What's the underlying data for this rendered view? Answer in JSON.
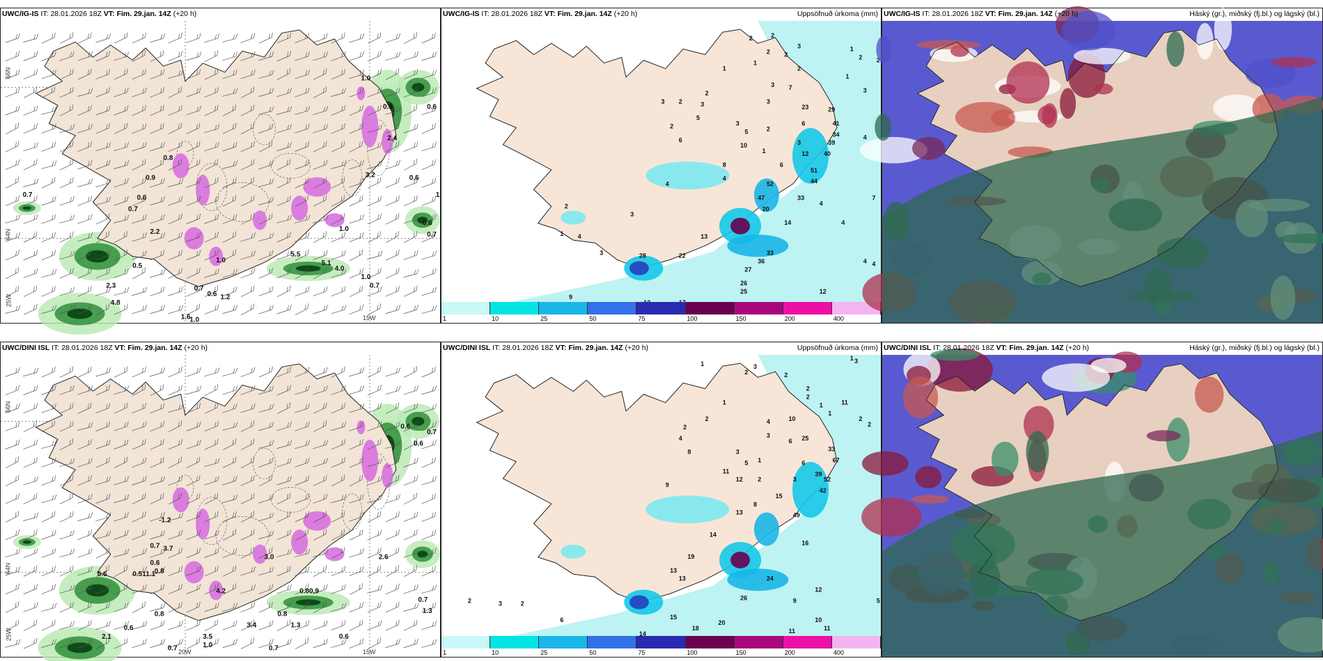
{
  "panels": [
    {
      "id": "p1",
      "model": "UWC/IG-IS",
      "it_label": "IT:",
      "it_value": "28.01.2026 18Z",
      "vt_label": "VT:",
      "vt_value": "Fim. 29.jan. 14Z",
      "lead": "(+20 h)",
      "right_label": ""
    },
    {
      "id": "p2",
      "model": "UWC/IG-IS",
      "it_label": "IT:",
      "it_value": "28.01.2026 18Z",
      "vt_label": "VT:",
      "vt_value": "Fim. 29.jan. 14Z",
      "lead": "(+20 h)",
      "right_label": "Uppsöfnuð úrkoma (mm)"
    },
    {
      "id": "p3",
      "model": "UWC/IG-IS",
      "it_label": "IT:",
      "it_value": "28.01.2026 18Z",
      "vt_label": "VT:",
      "vt_value": "Fim. 29.jan. 14Z",
      "lead": "(+20 h)",
      "right_label": "Háský (gr.), miðský (fj.bl.) og lágský (bl.)"
    },
    {
      "id": "p4",
      "model": "UWC/DINI ISL",
      "it_label": "IT:",
      "it_value": "28.01.2026 18Z",
      "vt_label": "VT:",
      "vt_value": "Fim. 29.jan. 14Z",
      "lead": "(+20 h)",
      "right_label": ""
    },
    {
      "id": "p5",
      "model": "UWC/DINI ISL",
      "it_label": "IT:",
      "it_value": "28.01.2026 18Z",
      "vt_label": "VT:",
      "vt_value": "Fim. 29.jan. 14Z",
      "lead": "(+20 h)",
      "right_label": "Uppsöfnuð úrkoma (mm)"
    },
    {
      "id": "p6",
      "model": "UWC/DINI ISL",
      "it_label": "IT:",
      "it_value": "28.01.2026 18Z",
      "vt_label": "VT:",
      "vt_value": "Fim. 29.jan. 14Z",
      "lead": "(+20 h)",
      "right_label": "Háský (gr.), miðský (fj.bl.) og lágský (bl.)"
    }
  ],
  "coords": {
    "lat_top": "66N",
    "lat_bottom": "64N",
    "lon_left": "25W",
    "lon_mid": "20W",
    "lon_right": "15W"
  },
  "colorbar": {
    "ticks": [
      "1",
      "10",
      "25",
      "50",
      "75",
      "100",
      "150",
      "200",
      "400"
    ],
    "colors": [
      "#c8f8f8",
      "#00e4e4",
      "#1ab6e8",
      "#3470e8",
      "#2a2ab0",
      "#6a0050",
      "#a8087c",
      "#ec10a8",
      "#f4b4f0"
    ]
  },
  "precip_labels_top": [
    {
      "t": "1.0",
      "u": 0.82,
      "v": 0.21
    },
    {
      "t": "0.9",
      "u": 0.87,
      "v": 0.31
    },
    {
      "t": "0.6",
      "u": 0.97,
      "v": 0.31
    },
    {
      "t": "2.4",
      "u": 0.88,
      "v": 0.42
    },
    {
      "t": "0.7",
      "u": 0.05,
      "v": 0.62
    },
    {
      "t": "0.8",
      "u": 0.37,
      "v": 0.49
    },
    {
      "t": "0.9",
      "u": 0.33,
      "v": 0.56
    },
    {
      "t": "0.6",
      "u": 0.31,
      "v": 0.63
    },
    {
      "t": "0.7",
      "u": 0.29,
      "v": 0.67
    },
    {
      "t": "2.2",
      "u": 0.34,
      "v": 0.75
    },
    {
      "t": "0.5",
      "u": 0.3,
      "v": 0.87
    },
    {
      "t": "2.3",
      "u": 0.24,
      "v": 0.94
    },
    {
      "t": "4.8",
      "u": 0.25,
      "v": 1.0
    },
    {
      "t": "1.6",
      "u": 0.41,
      "v": 1.05
    },
    {
      "t": "1.0",
      "u": 0.43,
      "v": 1.1
    },
    {
      "t": "0.7",
      "u": 0.44,
      "v": 0.95
    },
    {
      "t": "1.0",
      "u": 0.49,
      "v": 0.85
    },
    {
      "t": "0.6",
      "u": 0.47,
      "v": 0.97
    },
    {
      "t": "1.2",
      "u": 0.5,
      "v": 0.98
    },
    {
      "t": "5.1",
      "u": 0.73,
      "v": 0.86
    },
    {
      "t": "4.0",
      "u": 0.76,
      "v": 0.88
    },
    {
      "t": "1.0",
      "u": 0.82,
      "v": 0.91
    },
    {
      "t": "0.7",
      "u": 0.84,
      "v": 0.94
    },
    {
      "t": "1.0",
      "u": 0.99,
      "v": 0.62
    },
    {
      "t": "0.6",
      "u": 0.96,
      "v": 0.72
    },
    {
      "t": "0.7",
      "u": 0.97,
      "v": 0.76
    },
    {
      "t": "0.6",
      "u": 0.93,
      "v": 0.56
    },
    {
      "t": "5.5",
      "u": 0.66,
      "v": 0.83
    },
    {
      "t": "1.0",
      "u": 0.77,
      "v": 0.74
    },
    {
      "t": "3.2",
      "u": 0.83,
      "v": 0.55
    }
  ],
  "precip_labels_bottom": [
    {
      "t": "0.6",
      "u": 0.91,
      "v": 0.26
    },
    {
      "t": "0.7",
      "u": 0.97,
      "v": 0.28
    },
    {
      "t": "0.6",
      "u": 0.94,
      "v": 0.32
    },
    {
      "t": "-1.2",
      "u": 0.36,
      "v": 0.59
    },
    {
      "t": "0.7",
      "u": 0.34,
      "v": 0.68
    },
    {
      "t": "3.7",
      "u": 0.37,
      "v": 0.69
    },
    {
      "t": "0.6",
      "u": 0.34,
      "v": 0.74
    },
    {
      "t": "0.6",
      "u": 0.22,
      "v": 0.78
    },
    {
      "t": "0.51",
      "u": 0.3,
      "v": 0.78
    },
    {
      "t": "1.1",
      "u": 0.33,
      "v": 0.78
    },
    {
      "t": "0.8",
      "u": 0.35,
      "v": 0.77
    },
    {
      "t": "0.8",
      "u": 0.35,
      "v": 0.92
    },
    {
      "t": "0.6",
      "u": 0.28,
      "v": 0.97
    },
    {
      "t": "2.1",
      "u": 0.23,
      "v": 1.0
    },
    {
      "t": "0.7",
      "u": 0.38,
      "v": 1.04
    },
    {
      "t": "3.5",
      "u": 0.46,
      "v": 1.0
    },
    {
      "t": "1.0",
      "u": 0.46,
      "v": 1.03
    },
    {
      "t": "3.4",
      "u": 0.56,
      "v": 0.96
    },
    {
      "t": "0.8",
      "u": 0.63,
      "v": 0.92
    },
    {
      "t": "1.3",
      "u": 0.66,
      "v": 0.96
    },
    {
      "t": "0.6",
      "u": 0.77,
      "v": 1.0
    },
    {
      "t": "0.7",
      "u": 0.61,
      "v": 1.04
    },
    {
      "t": "0.7",
      "u": 0.95,
      "v": 0.87
    },
    {
      "t": "1.3",
      "u": 0.96,
      "v": 0.91
    },
    {
      "t": "0.80.9",
      "u": 0.68,
      "v": 0.84
    },
    {
      "t": "4.2",
      "u": 0.49,
      "v": 0.84
    },
    {
      "t": "3.0",
      "u": 0.6,
      "v": 0.72
    },
    {
      "t": "2.6",
      "u": 0.86,
      "v": 0.72
    }
  ],
  "accum_labels_top": [
    {
      "t": "1",
      "u": 0.06,
      "v": 1.02
    },
    {
      "t": "9",
      "u": 0.29,
      "v": 0.99
    },
    {
      "t": "12",
      "u": 0.46,
      "v": 1.01
    },
    {
      "t": "17",
      "u": 0.54,
      "v": 1.01
    },
    {
      "t": "22",
      "u": 0.54,
      "v": 0.84
    },
    {
      "t": "28",
      "u": 0.45,
      "v": 0.84
    },
    {
      "t": "2",
      "u": 0.28,
      "v": 0.66
    },
    {
      "t": "3",
      "u": 0.43,
      "v": 0.69
    },
    {
      "t": "1",
      "u": 0.27,
      "v": 0.76
    },
    {
      "t": "3",
      "u": 0.36,
      "v": 0.83
    },
    {
      "t": "4",
      "u": 0.31,
      "v": 0.77
    },
    {
      "t": "26",
      "u": 0.68,
      "v": 0.94
    },
    {
      "t": "25",
      "u": 0.68,
      "v": 0.97
    },
    {
      "t": "27",
      "u": 0.69,
      "v": 0.89
    },
    {
      "t": "36",
      "u": 0.72,
      "v": 0.86
    },
    {
      "t": "33",
      "u": 0.74,
      "v": 0.83
    },
    {
      "t": "14",
      "u": 0.78,
      "v": 0.72
    },
    {
      "t": "13",
      "u": 0.59,
      "v": 0.77
    },
    {
      "t": "4",
      "u": 0.51,
      "v": 0.58
    },
    {
      "t": "4",
      "u": 0.64,
      "v": 0.56
    },
    {
      "t": "8",
      "u": 0.64,
      "v": 0.51
    },
    {
      "t": "10",
      "u": 0.68,
      "v": 0.44
    },
    {
      "t": "3",
      "u": 0.67,
      "v": 0.36
    },
    {
      "t": "5",
      "u": 0.69,
      "v": 0.39
    },
    {
      "t": "5",
      "u": 0.58,
      "v": 0.34
    },
    {
      "t": "2",
      "u": 0.52,
      "v": 0.37
    },
    {
      "t": "2",
      "u": 0.6,
      "v": 0.25
    },
    {
      "t": "3",
      "u": 0.59,
      "v": 0.29
    },
    {
      "t": "2",
      "u": 0.54,
      "v": 0.28
    },
    {
      "t": "3",
      "u": 0.5,
      "v": 0.28
    },
    {
      "t": "1",
      "u": 0.64,
      "v": 0.16
    },
    {
      "t": "1",
      "u": 0.71,
      "v": 0.14
    },
    {
      "t": "2",
      "u": 0.74,
      "v": 0.1
    },
    {
      "t": "3",
      "u": 0.75,
      "v": 0.22
    },
    {
      "t": "3",
      "u": 0.74,
      "v": 0.28
    },
    {
      "t": "7",
      "u": 0.79,
      "v": 0.23
    },
    {
      "t": "23",
      "u": 0.82,
      "v": 0.3
    },
    {
      "t": "6",
      "u": 0.82,
      "v": 0.36
    },
    {
      "t": "12",
      "u": 0.82,
      "v": 0.47
    },
    {
      "t": "6",
      "u": 0.77,
      "v": 0.51
    },
    {
      "t": "3",
      "u": 0.81,
      "v": 0.43
    },
    {
      "t": "2",
      "u": 0.74,
      "v": 0.38
    },
    {
      "t": "1",
      "u": 0.73,
      "v": 0.46
    },
    {
      "t": "4",
      "u": 0.86,
      "v": 0.65
    },
    {
      "t": "4",
      "u": 0.91,
      "v": 0.72
    },
    {
      "t": "7",
      "u": 0.98,
      "v": 0.63
    },
    {
      "t": "4",
      "u": 0.96,
      "v": 0.86
    },
    {
      "t": "4",
      "u": 0.98,
      "v": 0.87
    },
    {
      "t": "12",
      "u": 0.86,
      "v": 0.97
    },
    {
      "t": "4",
      "u": 0.96,
      "v": 0.41
    },
    {
      "t": "33",
      "u": 0.81,
      "v": 0.63
    },
    {
      "t": "44",
      "u": 0.84,
      "v": 0.57
    },
    {
      "t": "51",
      "u": 0.84,
      "v": 0.53
    },
    {
      "t": "40",
      "u": 0.87,
      "v": 0.47
    },
    {
      "t": "39",
      "u": 0.88,
      "v": 0.43
    },
    {
      "t": "34",
      "u": 0.89,
      "v": 0.4
    },
    {
      "t": "41",
      "u": 0.89,
      "v": 0.36
    },
    {
      "t": "29",
      "u": 0.88,
      "v": 0.31
    },
    {
      "t": "2",
      "u": 0.7,
      "v": 0.05
    },
    {
      "t": "2",
      "u": 0.75,
      "v": 0.04
    },
    {
      "t": "3",
      "u": 0.81,
      "v": 0.08
    },
    {
      "t": "2",
      "u": 0.78,
      "v": 0.11
    },
    {
      "t": "1",
      "u": 0.93,
      "v": 0.09
    },
    {
      "t": "2",
      "u": 0.95,
      "v": 0.12
    },
    {
      "t": "1",
      "u": 0.92,
      "v": 0.19
    },
    {
      "t": "3",
      "u": 0.96,
      "v": 0.24
    },
    {
      "t": "2",
      "u": 0.99,
      "v": 0.13
    },
    {
      "t": "2",
      "u": 0.81,
      "v": 0.16
    },
    {
      "t": "20",
      "u": 0.73,
      "v": 0.67
    },
    {
      "t": "52",
      "u": 0.74,
      "v": 0.58
    },
    {
      "t": "47",
      "u": 0.72,
      "v": 0.63
    },
    {
      "t": "6",
      "u": 0.54,
      "v": 0.42
    }
  ],
  "accum_labels_bottom": [
    {
      "t": "2",
      "u": 0.06,
      "v": 0.88
    },
    {
      "t": "3",
      "u": 0.13,
      "v": 0.89
    },
    {
      "t": "2",
      "u": 0.18,
      "v": 0.89
    },
    {
      "t": "6",
      "u": 0.27,
      "v": 0.95
    },
    {
      "t": "14",
      "u": 0.45,
      "v": 1.0
    },
    {
      "t": "15",
      "u": 0.52,
      "v": 0.94
    },
    {
      "t": "18",
      "u": 0.57,
      "v": 0.98
    },
    {
      "t": "20",
      "u": 0.63,
      "v": 0.96
    },
    {
      "t": "26",
      "u": 0.68,
      "v": 0.87
    },
    {
      "t": "24",
      "u": 0.74,
      "v": 0.8
    },
    {
      "t": "9",
      "u": 0.8,
      "v": 0.88
    },
    {
      "t": "12",
      "u": 0.85,
      "v": 0.84
    },
    {
      "t": "10",
      "u": 0.85,
      "v": 0.95
    },
    {
      "t": "11",
      "u": 0.87,
      "v": 0.98
    },
    {
      "t": "11",
      "u": 0.79,
      "v": 0.99
    },
    {
      "t": "5",
      "u": 0.99,
      "v": 0.88
    },
    {
      "t": "13",
      "u": 0.54,
      "v": 0.8
    },
    {
      "t": "19",
      "u": 0.56,
      "v": 0.72
    },
    {
      "t": "13",
      "u": 0.52,
      "v": 0.77
    },
    {
      "t": "14",
      "u": 0.61,
      "v": 0.64
    },
    {
      "t": "16",
      "u": 0.82,
      "v": 0.67
    },
    {
      "t": "13",
      "u": 0.67,
      "v": 0.56
    },
    {
      "t": "9",
      "u": 0.51,
      "v": 0.46
    },
    {
      "t": "11",
      "u": 0.64,
      "v": 0.41
    },
    {
      "t": "12",
      "u": 0.67,
      "v": 0.44
    },
    {
      "t": "3",
      "u": 0.67,
      "v": 0.34
    },
    {
      "t": "5",
      "u": 0.69,
      "v": 0.38
    },
    {
      "t": "8",
      "u": 0.56,
      "v": 0.34
    },
    {
      "t": "4",
      "u": 0.54,
      "v": 0.29
    },
    {
      "t": "2",
      "u": 0.55,
      "v": 0.25
    },
    {
      "t": "2",
      "u": 0.6,
      "v": 0.22
    },
    {
      "t": "1",
      "u": 0.64,
      "v": 0.16
    },
    {
      "t": "3",
      "u": 0.71,
      "v": 0.03
    },
    {
      "t": "1",
      "u": 0.59,
      "v": 0.02
    },
    {
      "t": "2",
      "u": 0.69,
      "v": 0.05
    },
    {
      "t": "2",
      "u": 0.78,
      "v": 0.06
    },
    {
      "t": "4",
      "u": 0.74,
      "v": 0.23
    },
    {
      "t": "10",
      "u": 0.79,
      "v": 0.22
    },
    {
      "t": "3",
      "u": 0.74,
      "v": 0.28
    },
    {
      "t": "25",
      "u": 0.82,
      "v": 0.29
    },
    {
      "t": "6",
      "u": 0.82,
      "v": 0.38
    },
    {
      "t": "3",
      "u": 0.8,
      "v": 0.44
    },
    {
      "t": "15",
      "u": 0.76,
      "v": 0.5
    },
    {
      "t": "8",
      "u": 0.71,
      "v": 0.53
    },
    {
      "t": "2",
      "u": 0.72,
      "v": 0.44
    },
    {
      "t": "1",
      "u": 0.72,
      "v": 0.37
    },
    {
      "t": "33",
      "u": 0.88,
      "v": 0.33
    },
    {
      "t": "67",
      "u": 0.89,
      "v": 0.37
    },
    {
      "t": "39",
      "u": 0.85,
      "v": 0.42
    },
    {
      "t": "52",
      "u": 0.87,
      "v": 0.44
    },
    {
      "t": "42",
      "u": 0.86,
      "v": 0.48
    },
    {
      "t": "49",
      "u": 0.8,
      "v": 0.57
    },
    {
      "t": "2",
      "u": 0.95,
      "v": 0.22
    },
    {
      "t": "2",
      "u": 0.97,
      "v": 0.24
    },
    {
      "t": "1",
      "u": 0.86,
      "v": 0.17
    },
    {
      "t": "11",
      "u": 0.91,
      "v": 0.16
    },
    {
      "t": "3",
      "u": 0.94,
      "v": 0.01
    },
    {
      "t": "1",
      "u": 0.93,
      "v": 0.0
    },
    {
      "t": "2",
      "u": 0.83,
      "v": 0.14
    },
    {
      "t": "6",
      "u": 0.79,
      "v": 0.3
    },
    {
      "t": "1",
      "u": 0.88,
      "v": 0.2
    },
    {
      "t": "2",
      "u": 0.83,
      "v": 0.11
    }
  ]
}
